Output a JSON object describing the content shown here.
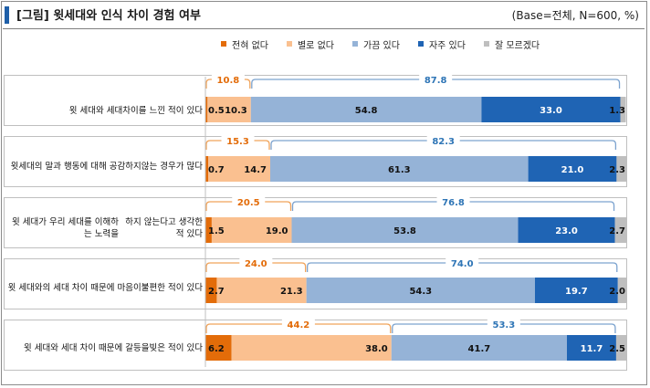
{
  "header": {
    "title": "[그림] 윗세대와 인식 차이 경험 여부",
    "base_note": "(Base=전체, N=600, %)"
  },
  "colors": {
    "accent": "#1f5fa8",
    "series": [
      "#e36c09",
      "#fac090",
      "#95b3d7",
      "#1f64b4",
      "#bfbfbf"
    ],
    "bracket_negative": "#f0a35a",
    "bracket_positive": "#7ca3cf",
    "bracket_negative_text": "#e36c09",
    "bracket_positive_text": "#2e75b6"
  },
  "legend": [
    {
      "label": "전혀 없다",
      "color": "#e36c09"
    },
    {
      "label": "별로 없다",
      "color": "#fac090"
    },
    {
      "label": "가끔 있다",
      "color": "#95b3d7"
    },
    {
      "label": "자주 있다",
      "color": "#1f64b4"
    },
    {
      "label": "잘 모르겠다",
      "color": "#bfbfbf"
    }
  ],
  "chart_data": {
    "type": "bar",
    "orientation": "horizontal",
    "stacked": true,
    "percent": true,
    "title": "[그림] 윗세대와 인식 차이 경험 여부",
    "unit": "%",
    "categories": [
      [
        "윗 세대와 세대차이를 느낀 적이 있다"
      ],
      [
        "윗세대의 말과 행동에 대해 공감하지",
        "않는 경우가 많다"
      ],
      [
        "윗 세대가 우리 세대를 이해하는 노력을",
        "하지 않는다고 생각한 적 있다"
      ],
      [
        "윗 세대와의 세대 차이 때문에 마음이",
        "불편한 적이 있다"
      ],
      [
        "윗 세대와 세대 차이 때문에 갈등을",
        "빚은 적이 있다"
      ]
    ],
    "series": [
      {
        "name": "전혀 없다",
        "values": [
          0.5,
          0.7,
          1.5,
          2.7,
          6.2
        ]
      },
      {
        "name": "별로 없다",
        "values": [
          10.3,
          14.7,
          19.0,
          21.3,
          38.0
        ]
      },
      {
        "name": "가끔 있다",
        "values": [
          54.8,
          61.3,
          53.8,
          54.3,
          41.7
        ]
      },
      {
        "name": "자주 있다",
        "values": [
          33.0,
          21.0,
          23.0,
          19.7,
          11.7
        ]
      },
      {
        "name": "잘 모르겠다",
        "values": [
          1.3,
          2.3,
          2.7,
          2.0,
          2.5
        ]
      }
    ],
    "value_labels": [
      [
        "0.5",
        "10.3",
        "54.8",
        "33.0",
        "1.3"
      ],
      [
        "0.7",
        "14.7",
        "61.3",
        "21.0",
        "2.3"
      ],
      [
        "1.5",
        "19.0",
        "53.8",
        "23.0",
        "2.7"
      ],
      [
        "2.7",
        "21.3",
        "54.3",
        "19.7",
        "2.0"
      ],
      [
        "6.2",
        "38.0",
        "41.7",
        "11.7",
        "2.5"
      ]
    ],
    "negative_totals": [
      "10.8",
      "15.3",
      "20.5",
      "24.0",
      "44.2"
    ],
    "positive_totals": [
      "87.8",
      "82.3",
      "76.8",
      "74.0",
      "53.3"
    ]
  }
}
